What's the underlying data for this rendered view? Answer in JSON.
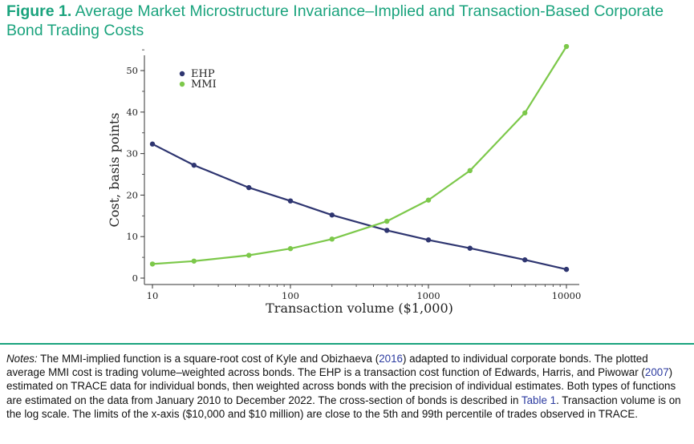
{
  "figure": {
    "label": "Figure 1.",
    "title": "Average Market Microstructure Invariance–Implied and Transaction-Based Corporate Bond Trading Costs"
  },
  "chart_data": {
    "type": "line",
    "x_scale": "log",
    "x": [
      10,
      20,
      50,
      100,
      200,
      500,
      1000,
      2000,
      5000,
      10000
    ],
    "xlim": [
      10,
      10000
    ],
    "ylim": [
      0,
      56
    ],
    "x_ticks": [
      10,
      100,
      1000,
      10000
    ],
    "x_tick_labels": [
      "10",
      "100",
      "1000",
      "10000"
    ],
    "y_ticks": [
      0,
      10,
      20,
      30,
      40,
      50
    ],
    "y_tick_labels": [
      "0",
      "10",
      "20",
      "30",
      "40",
      "50"
    ],
    "xlabel": "Transaction volume ($1,000)",
    "ylabel": "Cost, basis points",
    "grid": false,
    "legend_position": "top-left",
    "series": [
      {
        "name": "EHP",
        "color": "#2e3570",
        "values": [
          32.3,
          27.2,
          21.8,
          18.6,
          15.2,
          11.5,
          9.2,
          7.2,
          4.4,
          2.1
        ]
      },
      {
        "name": "MMI",
        "color": "#7cc84a",
        "values": [
          3.4,
          4.1,
          5.5,
          7.1,
          9.4,
          13.7,
          18.8,
          25.9,
          39.8,
          55.8
        ]
      }
    ]
  },
  "notes": {
    "label": "Notes:",
    "seg1": " The MMI-implied function is a square-root cost of Kyle and Obizhaeva (",
    "ref1": "2016",
    "seg2": ") adapted to individual corporate bonds. The plotted average MMI cost is trading volume–weighted across bonds. The EHP is a transaction cost function of Edwards, Harris, and Piwowar (",
    "ref2": "2007",
    "seg3": ") estimated on TRACE data for individual bonds, then weighted across bonds with the precision of individual estimates. Both types of functions are estimated on the data from January 2010 to December 2022. The cross-section of bonds is described in ",
    "ref3": "Table 1",
    "seg4": ". Transaction volume is on the log scale. The limits of the x-axis ($10,000 and $10 million) are close to the 5th and 99th percentile of trades observed in TRACE."
  }
}
